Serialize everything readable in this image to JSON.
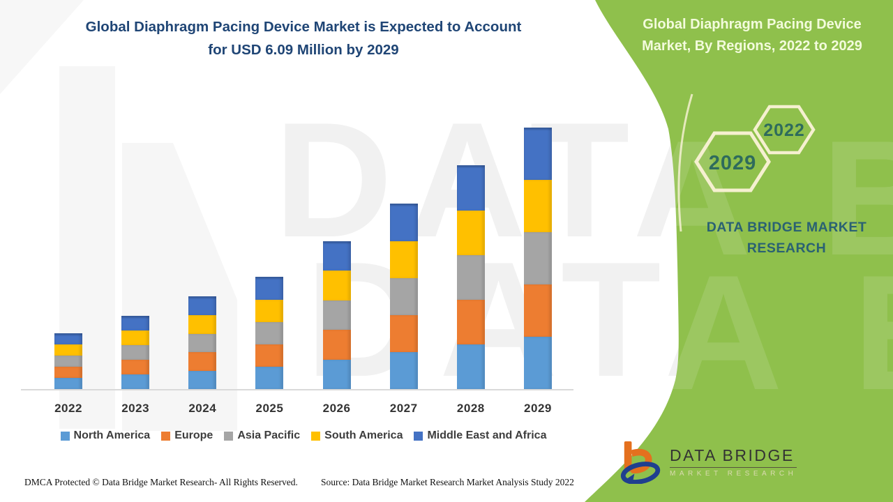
{
  "header": {
    "main_title_line1": "Global Diaphragm Pacing Device Market is Expected to Account",
    "main_title_line2": "for USD 6.09 Million by 2029",
    "panel_title_line1": "Global Diaphragm Pacing Device",
    "panel_title_line2": "Market, By Regions, 2022 to 2029"
  },
  "panel": {
    "hexagon_labels": [
      "2022",
      "2029"
    ],
    "brand_text_line1": "DATA BRIDGE MARKET",
    "brand_text_line2": "RESEARCH",
    "logo": {
      "title": "DATA BRIDGE",
      "subtitle": "MARKET RESEARCH"
    }
  },
  "watermark": {
    "row1": "DATA BRIDGE",
    "row2": "DATA BRIDGE"
  },
  "footer": {
    "left": "DMCA Protected © Data Bridge Market Research- All Rights Reserved.",
    "right": "Source: Data Bridge Market Research Market Analysis Study 2022"
  },
  "colors": {
    "green_panel": "#8fc04c",
    "title_blue": "#1f4575",
    "hexagon_stroke": "#f5f0d0",
    "hexagon_number": "#2e6b5c",
    "brand_text": "#2a6173",
    "north_america": "#5B9BD5",
    "europe": "#ED7D31",
    "asia_pacific": "#A5A5A5",
    "south_america": "#FFC000",
    "middle_east_africa": "#4472C4"
  },
  "chart_data": {
    "type": "bar",
    "stacked": true,
    "title": "Global Diaphragm Pacing Device Market, By Regions, 2022 to 2029",
    "unit": "USD Million",
    "categories": [
      "2022",
      "2023",
      "2024",
      "2025",
      "2026",
      "2027",
      "2028",
      "2029"
    ],
    "series": [
      {
        "name": "North America",
        "color": "#5B9BD5",
        "values": [
          0.26,
          0.34,
          0.43,
          0.52,
          0.69,
          0.86,
          1.04,
          1.22
        ]
      },
      {
        "name": "Europe",
        "color": "#ED7D31",
        "values": [
          0.26,
          0.34,
          0.43,
          0.52,
          0.69,
          0.86,
          1.04,
          1.22
        ]
      },
      {
        "name": "Asia Pacific",
        "color": "#A5A5A5",
        "values": [
          0.26,
          0.34,
          0.43,
          0.52,
          0.69,
          0.86,
          1.04,
          1.22
        ]
      },
      {
        "name": "South America",
        "color": "#FFC000",
        "values": [
          0.26,
          0.34,
          0.43,
          0.52,
          0.69,
          0.86,
          1.04,
          1.22
        ]
      },
      {
        "name": "Middle East and Africa",
        "color": "#4472C4",
        "values": [
          0.26,
          0.35,
          0.44,
          0.53,
          0.68,
          0.88,
          1.05,
          1.21
        ]
      }
    ],
    "totals": [
      1.3,
      1.71,
      2.16,
      2.61,
      3.44,
      4.32,
      5.21,
      6.09
    ],
    "ylim": [
      0,
      6.5
    ],
    "grid": false,
    "y_axis_visible": false,
    "legend_position": "bottom"
  }
}
